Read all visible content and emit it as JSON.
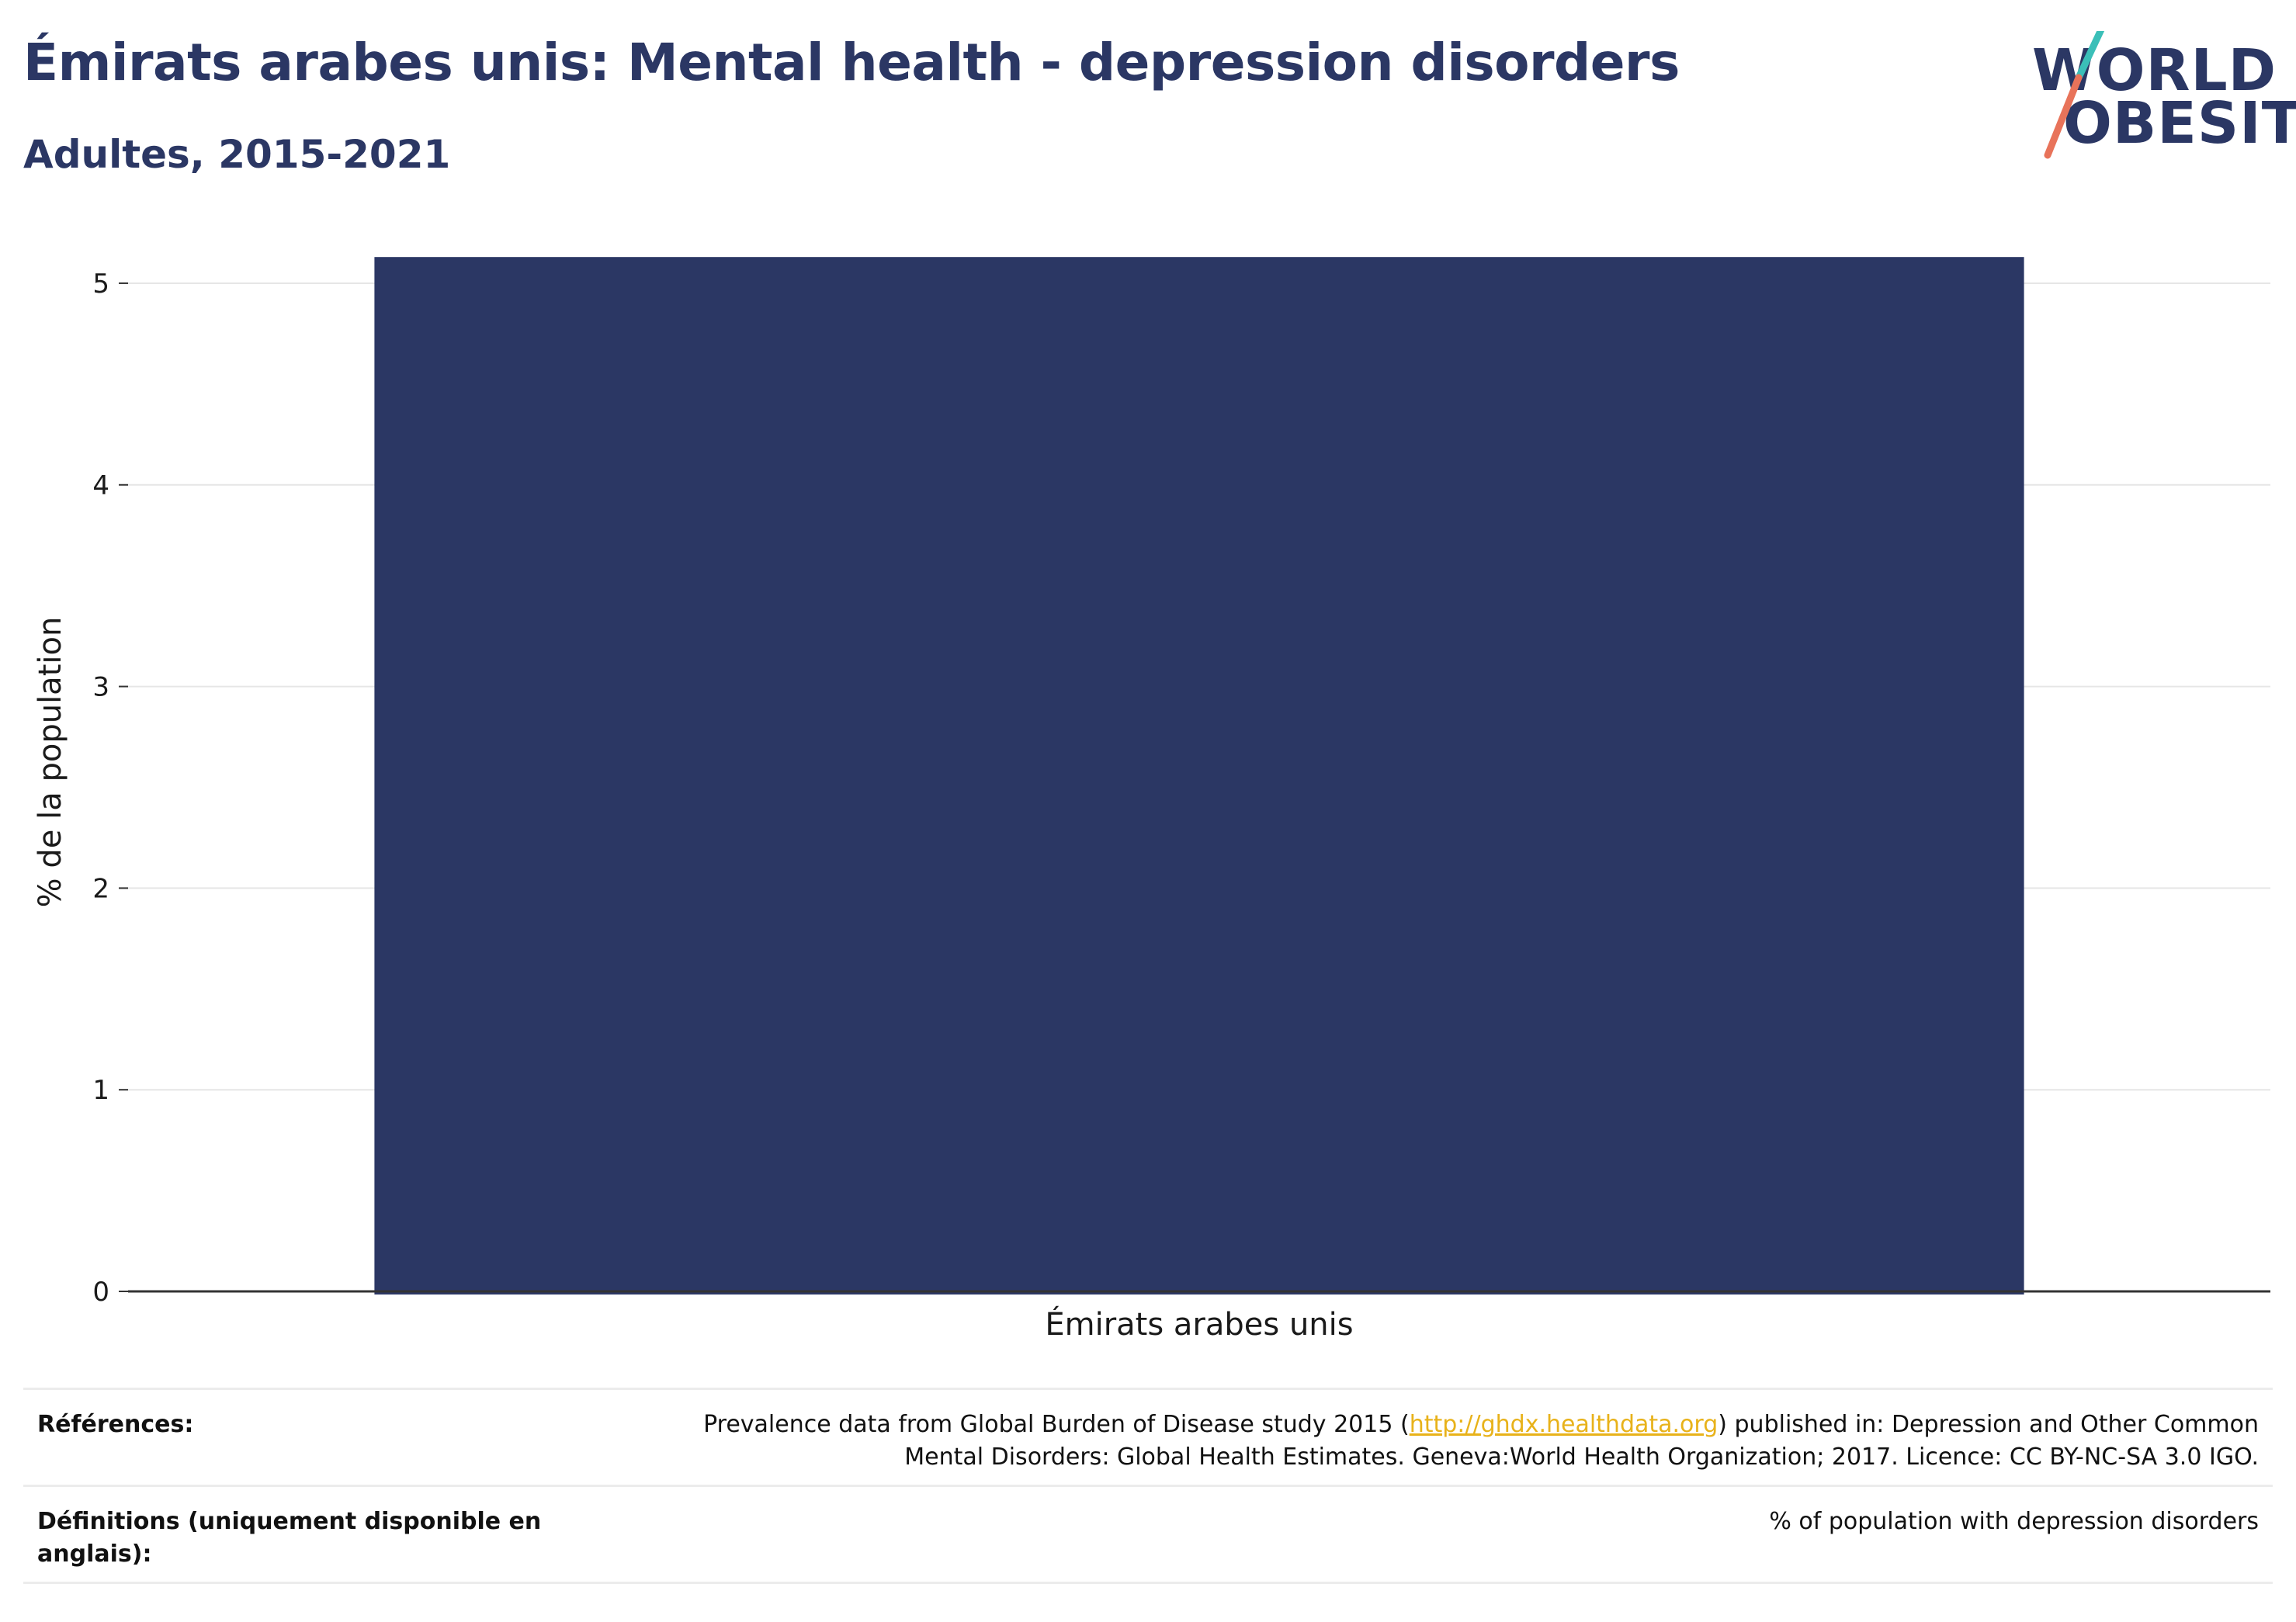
{
  "header": {
    "title": "Émirats arabes unis: Mental health - depression disorders",
    "subtitle": "Adultes, 2015-2021"
  },
  "logo": {
    "line1": "WORLD",
    "line2": "OBESITY",
    "colors": {
      "text": "#2b3764",
      "slash_top": "#3bbfb8",
      "slash_bottom": "#e8735a"
    }
  },
  "chart_data": {
    "type": "bar",
    "categories": [
      "Émirats arabes unis"
    ],
    "values": [
      5.13
    ],
    "ylabel": "% de la population",
    "xlabel": "",
    "ylim": [
      0,
      5.25
    ],
    "yticks": [
      0,
      1,
      2,
      3,
      4,
      5
    ],
    "grid": true,
    "bar_color": "#2b3764"
  },
  "references": {
    "rows": [
      {
        "label": "Références:",
        "value_before": "Prevalence data from Global Burden of Disease study 2015 (",
        "link": "http://ghdx.healthdata.org",
        "value_after": ") published in: Depression and Other Common Mental Disorders: Global Health Estimates. Geneva:World Health Organization; 2017. Licence: CC BY-NC-SA 3.0 IGO."
      },
      {
        "label": "Définitions (uniquement disponible en anglais):",
        "value": "% of population with depression disorders"
      }
    ]
  }
}
